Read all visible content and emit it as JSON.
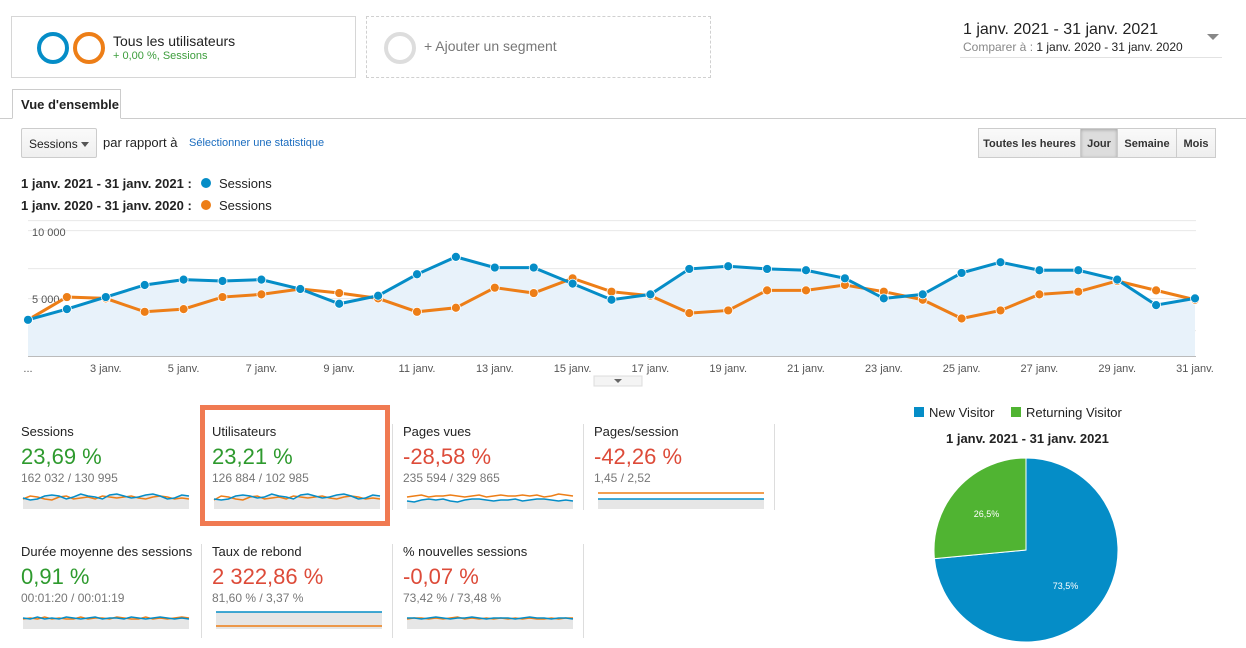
{
  "segments": {
    "all_users": {
      "title": "Tous les utilisateurs",
      "subtitle": "+ 0,00 %, Sessions"
    },
    "add_segment": "+ Ajouter un segment"
  },
  "date_range": {
    "main": "1 janv. 2021 - 31 janv. 2021",
    "compare_label": "Comparer à :",
    "compare_value": "1 janv. 2020 - 31 janv. 2020"
  },
  "tab": "Vue d'ensemble",
  "controls": {
    "metric": "Sessions",
    "versus": "par rapport à",
    "select_metric": "Sélectionner une statistique",
    "granularity": [
      "Toutes les heures",
      "Jour",
      "Semaine",
      "Mois"
    ],
    "active_granularity": "Jour"
  },
  "colors": {
    "current": "#058dc7",
    "previous": "#ed7e17",
    "new_visitor": "#058dc7",
    "returning_visitor": "#50b432",
    "positive": "#2e9a2e",
    "negative": "#dd4b39",
    "highlight": "#f07a52"
  },
  "legend": [
    {
      "range": "1 janv. 2021 - 31 janv. 2021 :",
      "name": "Sessions"
    },
    {
      "range": "1 janv. 2020 - 31 janv. 2020 :",
      "name": "Sessions"
    }
  ],
  "chart_data": {
    "type": "line",
    "title": "",
    "xlabel": "",
    "ylabel": "",
    "ylim": [
      0,
      10000
    ],
    "y_ticks": [
      "10 000",
      "5 000"
    ],
    "y_tick_values": [
      10000,
      5000
    ],
    "x_tick_labels": [
      "...",
      "3 janv.",
      "5 janv.",
      "7 janv.",
      "9 janv.",
      "11 janv.",
      "13 janv.",
      "15 janv.",
      "17 janv.",
      "19 janv.",
      "21 janv.",
      "23 janv.",
      "25 janv.",
      "27 janv.",
      "29 janv.",
      "31 janv."
    ],
    "x": [
      1,
      2,
      3,
      4,
      5,
      6,
      7,
      8,
      9,
      10,
      11,
      12,
      13,
      14,
      15,
      16,
      17,
      18,
      19,
      20,
      21,
      22,
      23,
      24,
      25,
      26,
      27,
      28,
      29,
      30,
      31
    ],
    "series": [
      {
        "name": "Sessions",
        "period": "1 janv. 2021 - 31 janv. 2021",
        "values": [
          2700,
          3500,
          4400,
          5300,
          5700,
          5600,
          5700,
          5000,
          3900,
          4500,
          6100,
          7400,
          6600,
          6600,
          5400,
          4200,
          4600,
          6500,
          6700,
          6500,
          6400,
          5800,
          4300,
          4600,
          6200,
          7000,
          6400,
          6400,
          5700,
          3800,
          4300
        ]
      },
      {
        "name": "Sessions",
        "period": "1 janv. 2020 - 31 janv. 2020",
        "values": [
          2700,
          4400,
          4300,
          3300,
          3500,
          4400,
          4600,
          5000,
          4700,
          4300,
          3300,
          3600,
          5100,
          4700,
          5800,
          4800,
          4500,
          3200,
          3400,
          4900,
          4900,
          5300,
          4800,
          4200,
          2800,
          3400,
          4600,
          4800,
          5600,
          4900,
          4200
        ]
      }
    ]
  },
  "scorecards": [
    {
      "label": "Sessions",
      "value": "23,69 %",
      "trend": "pos",
      "sub": "162 032 / 130 995"
    },
    {
      "label": "Utilisateurs",
      "value": "23,21 %",
      "trend": "pos",
      "sub": "126 884 / 102 985"
    },
    {
      "label": "Pages vues",
      "value": "-28,58 %",
      "trend": "neg",
      "sub": "235 594 / 329 865"
    },
    {
      "label": "Pages/session",
      "value": "-42,26 %",
      "trend": "neg",
      "sub": "1,45 / 2,52"
    },
    {
      "label": "Durée moyenne des sessions",
      "value": "0,91 %",
      "trend": "pos",
      "sub": "00:01:20 / 00:01:19"
    },
    {
      "label": "Taux de rebond",
      "value": "2 322,86 %",
      "trend": "neg",
      "sub": "81,60 % / 3,37 %"
    },
    {
      "label": "% nouvelles sessions",
      "value": "-0,07 %",
      "trend": "neg",
      "sub": "73,42 % / 73,48 %"
    }
  ],
  "pie": {
    "legend": [
      "New Visitor",
      "Returning Visitor"
    ],
    "title": "1 janv. 2021 - 31 janv. 2021",
    "slices": [
      {
        "name": "New Visitor",
        "value": 73.5,
        "label": "73,5%"
      },
      {
        "name": "Returning Visitor",
        "value": 26.5,
        "label": "26,5%"
      }
    ]
  }
}
